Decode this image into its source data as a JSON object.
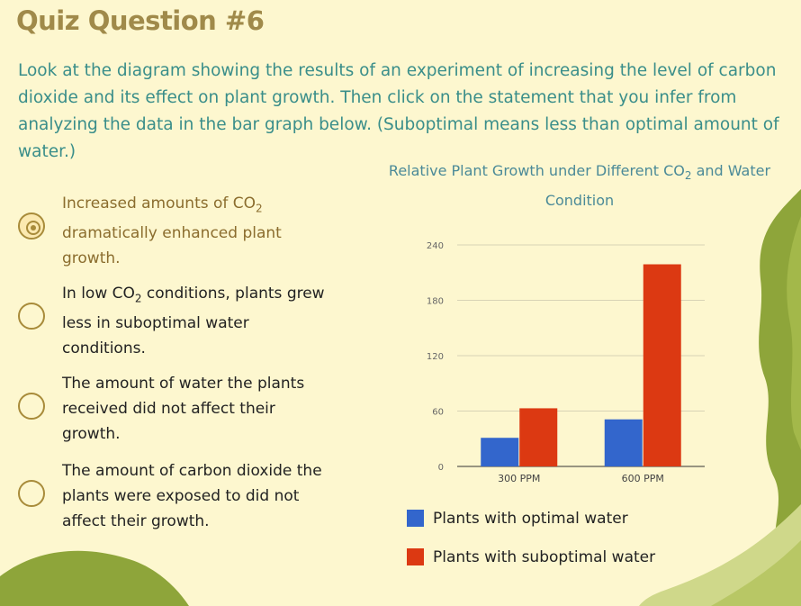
{
  "quiz": {
    "title": "Quiz Question #6",
    "prompt": "Look at the diagram showing the results of an experiment of increasing the level of carbon dioxide and its effect on plant growth. Then click on the statement that you infer from analyzing the data in the bar graph below. (Suboptimal means less than optimal amount of water.)"
  },
  "options": [
    {
      "before": "Increased amounts of CO",
      "sub": "2",
      "after": " dramatically enhanced plant growth.",
      "selected": true
    },
    {
      "before": "In low CO",
      "sub": "2",
      "after": " conditions, plants grew less in suboptimal water conditions.",
      "selected": false
    },
    {
      "before": "The amount of water the plants received did not affect their growth.",
      "sub": "",
      "after": "",
      "selected": false
    },
    {
      "before": "The amount of carbon dioxide the plants were exposed to did not affect their growth.",
      "sub": "",
      "after": "",
      "selected": false
    }
  ],
  "chart_title": {
    "before": "Relative Plant Growth under Different CO",
    "sub": "2",
    "after": " and Water Condition"
  },
  "chart_data": {
    "type": "bar",
    "title": "Relative Plant Growth under Different CO2 and Water Condition",
    "categories": [
      "300 PPM",
      "600 PPM"
    ],
    "series": [
      {
        "name": "Plants with optimal water",
        "color": "#3366cc",
        "values": [
          31,
          51
        ]
      },
      {
        "name": "Plants with suboptimal water",
        "color": "#dc3912",
        "values": [
          63,
          219
        ]
      }
    ],
    "yticks": [
      0,
      60,
      120,
      180,
      240
    ],
    "ylim": [
      0,
      240
    ],
    "grid": true,
    "legend": "bottom"
  }
}
